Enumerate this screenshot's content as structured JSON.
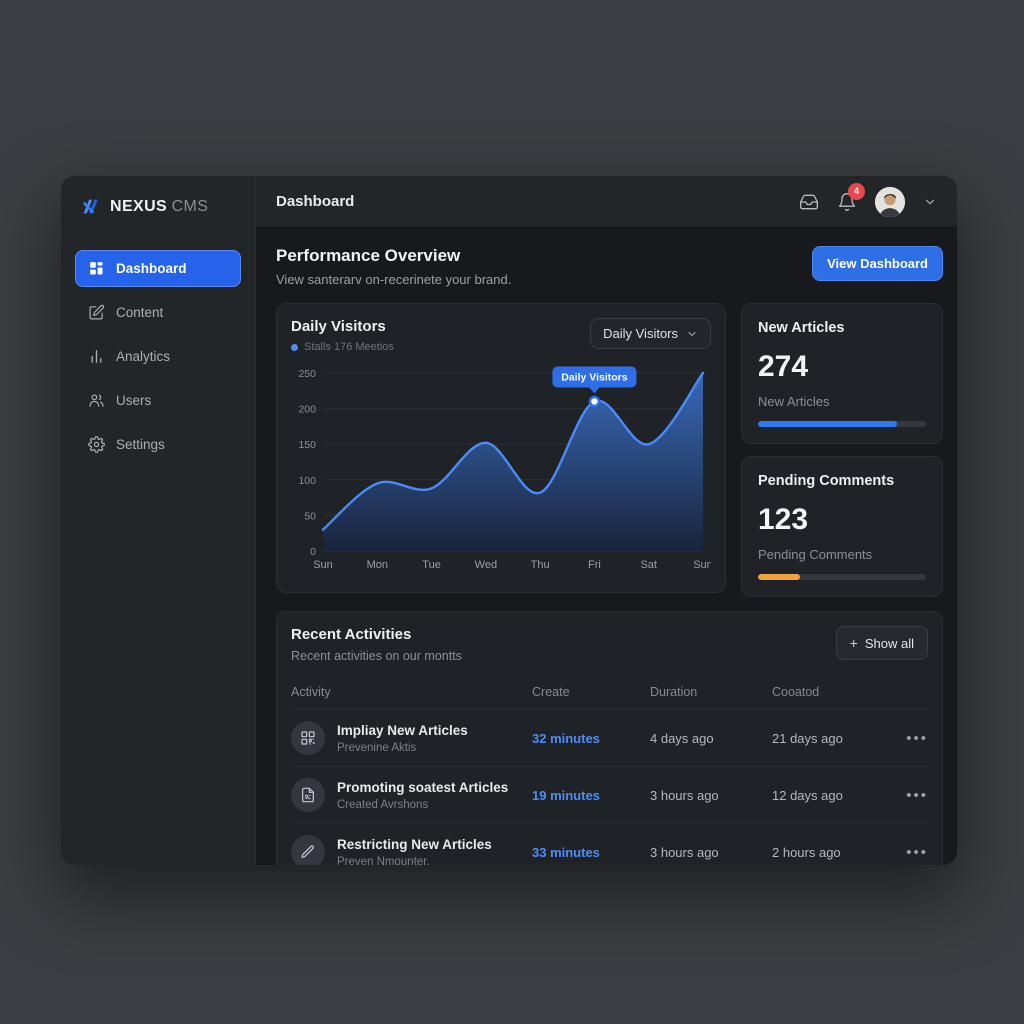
{
  "app": {
    "brand": "NEXUS",
    "brand_suffix": "CMS"
  },
  "topbar": {
    "title": "Dashboard",
    "notification_count": "4"
  },
  "sidebar": {
    "items": [
      {
        "label": "Dashboard",
        "active": true
      },
      {
        "label": "Content",
        "active": false
      },
      {
        "label": "Analytics",
        "active": false
      },
      {
        "label": "Users",
        "active": false
      },
      {
        "label": "Settings",
        "active": false
      }
    ]
  },
  "overview": {
    "title": "Performance Overview",
    "subtitle": "View santerarv on-recerinete your brand.",
    "cta_label": "View Dashboard"
  },
  "chart_card": {
    "title": "Daily Visitors",
    "legend_label": "Stalls 176 Meetios",
    "dropdown_value": "Daily Visitors"
  },
  "chart_data": {
    "type": "area",
    "title": "Daily Visitors",
    "x": [
      "Sun",
      "Mon",
      "Tue",
      "Wed",
      "Thu",
      "Fri",
      "Sat",
      "Sun"
    ],
    "series": [
      {
        "name": "Daily Visitors",
        "values": [
          30,
          95,
          88,
          152,
          82,
          210,
          150,
          250
        ]
      }
    ],
    "ylim": [
      0,
      250
    ],
    "yticks": [
      0,
      50,
      100,
      150,
      200,
      250
    ],
    "grid": true,
    "legend_position": "top-left",
    "tooltip": {
      "index": 5,
      "label": "Daily Visitors"
    },
    "line_color": "#4a8cf7",
    "area_top": "#3b6fc4",
    "area_bottom": "#18243c"
  },
  "stats": [
    {
      "title": "New Articles",
      "value": "274",
      "label": "New Articles",
      "progress": 83,
      "color": "#2e7af0"
    },
    {
      "title": "Pending Comments",
      "value": "123",
      "label": "Pending Comments",
      "progress": 25,
      "color": "#f0a43c"
    }
  ],
  "activities": {
    "title": "Recent Activities",
    "subtitle": "Recent activities on our montts",
    "show_all_icon": "+",
    "show_all_label": "Show all",
    "columns": [
      "Activity",
      "Create",
      "Duration",
      "Cooatod"
    ],
    "menu_glyph": "•••",
    "rows": [
      {
        "icon": "qr-code",
        "title": "Impliay New Articles",
        "subtitle": "Prevenine Aktis",
        "create": "32 minutes",
        "duration": "4 days ago",
        "created": "21 days ago"
      },
      {
        "icon": "file",
        "title": "Promoting soatest Articles",
        "subtitle": "Created Avrshons",
        "create": "19 minutes",
        "duration": "3 hours ago",
        "created": "12 days ago"
      },
      {
        "icon": "pencil",
        "title": "Restricting New Articles",
        "subtitle": "Preven Nmounter.",
        "create": "33 minutes",
        "duration": "3 hours ago",
        "created": "2 hours ago"
      }
    ]
  },
  "colors": {
    "accent": "#2e6fe8",
    "danger": "#e5484d",
    "legend_dot": "#4d8df6"
  }
}
